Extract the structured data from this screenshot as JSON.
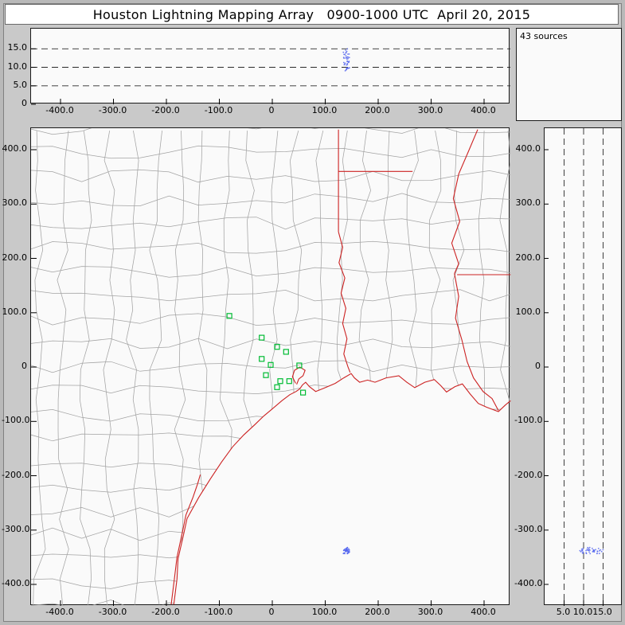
{
  "title": "Houston Lightning Mapping Array   0900-1000 UTC  April 20, 2015",
  "chart_data": {
    "type": "scatter",
    "panels": {
      "alt_ew": {
        "description": "altitude (km) vs east-west distance (km), dashed reference levels",
        "x_range": [
          -455,
          455
        ],
        "alt_range": [
          0,
          20
        ],
        "dashed_levels": [
          5,
          10,
          15
        ],
        "x_ticks": {
          "labels": [
            "-400.0",
            "-300.0",
            "-200.0",
            "-100.0",
            "0",
            "100.0",
            "200.0",
            "300.0",
            "400.0"
          ],
          "values": [
            -400,
            -300,
            -200,
            -100,
            0,
            100,
            200,
            300,
            400
          ]
        },
        "y_ticks": {
          "labels": [
            "15.0",
            "10.0",
            "5.0",
            "0"
          ],
          "values": [
            15,
            10,
            5,
            0
          ]
        }
      },
      "histogram": {
        "label": "43 sources"
      },
      "plan": {
        "description": "plan view map: north-south (km) vs east-west (km), county and state borders",
        "x_range": [
          -455,
          455
        ],
        "y_range": [
          -440,
          440
        ],
        "x_ticks": {
          "labels": [
            "-400.0",
            "-300.0",
            "-200.0",
            "-100.0",
            "0",
            "100.0",
            "200.0",
            "300.0",
            "400.0"
          ],
          "values": [
            -400,
            -300,
            -200,
            -100,
            0,
            100,
            200,
            300,
            400
          ]
        },
        "y_ticks": {
          "labels": [
            "400.0",
            "300.0",
            "200.0",
            "100.0",
            "0",
            "-100.0",
            "-200.0",
            "-300.0",
            "-400.0"
          ],
          "values": [
            400,
            300,
            200,
            100,
            0,
            -100,
            -200,
            -300,
            -400
          ]
        }
      },
      "alt_ns": {
        "description": "north-south distance (km) vs altitude (km), dashed reference levels",
        "alt_range": [
          0,
          20
        ],
        "y_range": [
          -440,
          440
        ],
        "dashed_levels": [
          5,
          10,
          15
        ],
        "x_ticks": {
          "labels": [
            "5.0",
            "10.0",
            "15.0"
          ],
          "values": [
            5,
            10,
            15
          ]
        },
        "y_ticks": {
          "labels": [
            "400.0",
            "300.0",
            "200.0",
            "100.0",
            "0",
            "-100.0",
            "-200.0",
            "-300.0",
            "-400.0"
          ],
          "values": [
            400,
            300,
            200,
            100,
            0,
            -100,
            -200,
            -300,
            -400
          ]
        }
      }
    },
    "stations_km": [
      [
        -81,
        94
      ],
      [
        -20,
        54
      ],
      [
        9,
        37
      ],
      [
        26,
        28
      ],
      [
        -20,
        15
      ],
      [
        -3,
        4
      ],
      [
        51,
        3
      ],
      [
        -12,
        -15
      ],
      [
        15,
        -26
      ],
      [
        32,
        -26
      ],
      [
        9,
        -37
      ],
      [
        58,
        -47
      ]
    ],
    "sources_cluster": {
      "count": 43,
      "x": 140,
      "y": -338,
      "alt_km": [
        9,
        15
      ],
      "spread_km": 6
    },
    "map": {
      "borders_km": {
        "coast": [
          [
            -186,
            -437
          ],
          [
            -180,
            -390
          ],
          [
            -178,
            -353
          ],
          [
            -168,
            -310
          ],
          [
            -161,
            -279
          ],
          [
            -139,
            -240
          ],
          [
            -117,
            -206
          ],
          [
            -96,
            -175
          ],
          [
            -75,
            -147
          ],
          [
            -54,
            -125
          ],
          [
            -33,
            -106
          ],
          [
            -16,
            -90
          ],
          [
            0,
            -77
          ],
          [
            18,
            -62
          ],
          [
            33,
            -51
          ],
          [
            45,
            -45
          ],
          [
            52,
            -40
          ],
          [
            57,
            -33
          ],
          [
            63,
            -28
          ],
          [
            70,
            -36
          ],
          [
            82,
            -45
          ],
          [
            100,
            -38
          ],
          [
            119,
            -30
          ],
          [
            135,
            -20
          ],
          [
            149,
            -12
          ],
          [
            155,
            -20
          ],
          [
            165,
            -28
          ],
          [
            180,
            -24
          ],
          [
            194,
            -28
          ],
          [
            215,
            -20
          ],
          [
            239,
            -16
          ],
          [
            254,
            -28
          ],
          [
            269,
            -38
          ],
          [
            288,
            -28
          ],
          [
            306,
            -23
          ],
          [
            318,
            -34
          ],
          [
            329,
            -46
          ],
          [
            345,
            -36
          ],
          [
            359,
            -31
          ],
          [
            374,
            -50
          ],
          [
            389,
            -67
          ],
          [
            405,
            -74
          ],
          [
            427,
            -82
          ],
          [
            440,
            -70
          ],
          [
            450,
            -62
          ]
        ],
        "barrier_island": [
          [
            -191,
            -437
          ],
          [
            -185,
            -390
          ],
          [
            -180,
            -350
          ],
          [
            -170,
            -305
          ],
          [
            -163,
            -272
          ],
          [
            -150,
            -240
          ],
          [
            -141,
            -215
          ],
          [
            -136,
            -198
          ]
        ],
        "tx_ar_border": [
          [
            125,
            437
          ],
          [
            125,
            360
          ],
          [
            125,
            249
          ]
        ],
        "sabine_river": [
          [
            125,
            249
          ],
          [
            133,
            220
          ],
          [
            126,
            192
          ],
          [
            137,
            164
          ],
          [
            130,
            136
          ],
          [
            139,
            108
          ],
          [
            133,
            80
          ],
          [
            141,
            52
          ],
          [
            135,
            24
          ],
          [
            143,
            0
          ],
          [
            147,
            -10
          ]
        ],
        "ar_la_border": [
          [
            125,
            360
          ],
          [
            265,
            360
          ]
        ],
        "mississippi_upper": [
          [
            388,
            437
          ],
          [
            371,
            398
          ],
          [
            352,
            355
          ],
          [
            342,
            310
          ],
          [
            354,
            268
          ],
          [
            339,
            228
          ],
          [
            352,
            190
          ],
          [
            344,
            172
          ]
        ],
        "la_ms_border": [
          [
            349,
            170
          ],
          [
            450,
            170
          ]
        ],
        "mississippi_lower": [
          [
            344,
            172
          ],
          [
            352,
            130
          ],
          [
            346,
            90
          ],
          [
            358,
            50
          ],
          [
            368,
            10
          ],
          [
            380,
            -20
          ],
          [
            398,
            -45
          ],
          [
            415,
            -58
          ],
          [
            427,
            -80
          ]
        ],
        "galveston_bay": [
          [
            44,
            -30
          ],
          [
            38,
            -18
          ],
          [
            42,
            -6
          ],
          [
            52,
            0
          ],
          [
            62,
            -6
          ],
          [
            58,
            -16
          ],
          [
            50,
            -22
          ],
          [
            46,
            -32
          ]
        ]
      },
      "county_grid": {
        "spacing_km": 44,
        "jitter_km": 12,
        "seed": 7
      }
    },
    "colors": {
      "state_border": "#cc2222",
      "county": "#a3a3a3",
      "station": "#00bb33",
      "source": "#5566ee",
      "dash": "#2a2a2a",
      "panel_bg": "#fafafa",
      "frame_bg": "#c9c9c9"
    }
  }
}
